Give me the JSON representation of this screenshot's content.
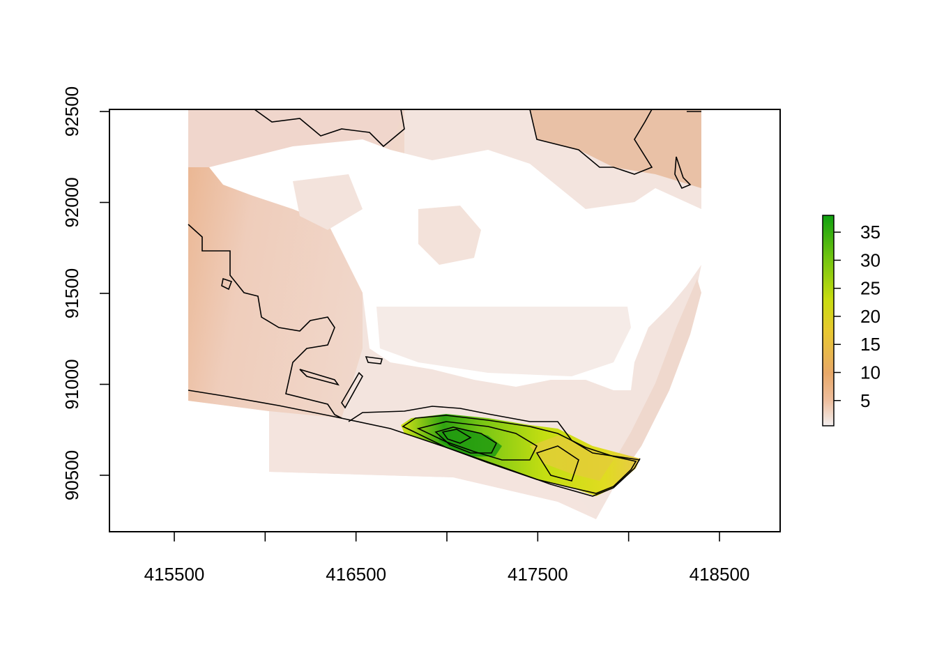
{
  "chart_data": {
    "type": "heatmap",
    "title": "",
    "xlabel": "",
    "ylabel": "",
    "x_axis": {
      "range": [
        415100,
        418800
      ],
      "ticks": [
        415500,
        416000,
        416500,
        417000,
        417500,
        418000,
        418500
      ],
      "tick_labels": [
        "415500",
        "",
        "416500",
        "",
        "417500",
        "",
        "418500"
      ]
    },
    "y_axis": {
      "range": [
        90100,
        92500
      ],
      "ticks": [
        90500,
        91000,
        91500,
        92000,
        92500
      ],
      "tick_labels": [
        "90500",
        "91000",
        "91500",
        "92000",
        "92500"
      ]
    },
    "raster_extent": {
      "xmin": 415580,
      "xmax": 418400,
      "ymin": 90250,
      "ymax": 92500
    },
    "color_scale": {
      "min": 0.5,
      "max": 38,
      "ticks": [
        5,
        10,
        15,
        20,
        25,
        30,
        35
      ],
      "tick_labels": [
        "5",
        "10",
        "15",
        "20",
        "25",
        "30",
        "35"
      ],
      "colors": [
        "#f2eeee",
        "#eebe9e",
        "#e8a868",
        "#e8c830",
        "#c8dc10",
        "#70c410",
        "#10a010"
      ]
    },
    "contours": true,
    "legend_position": "right"
  }
}
